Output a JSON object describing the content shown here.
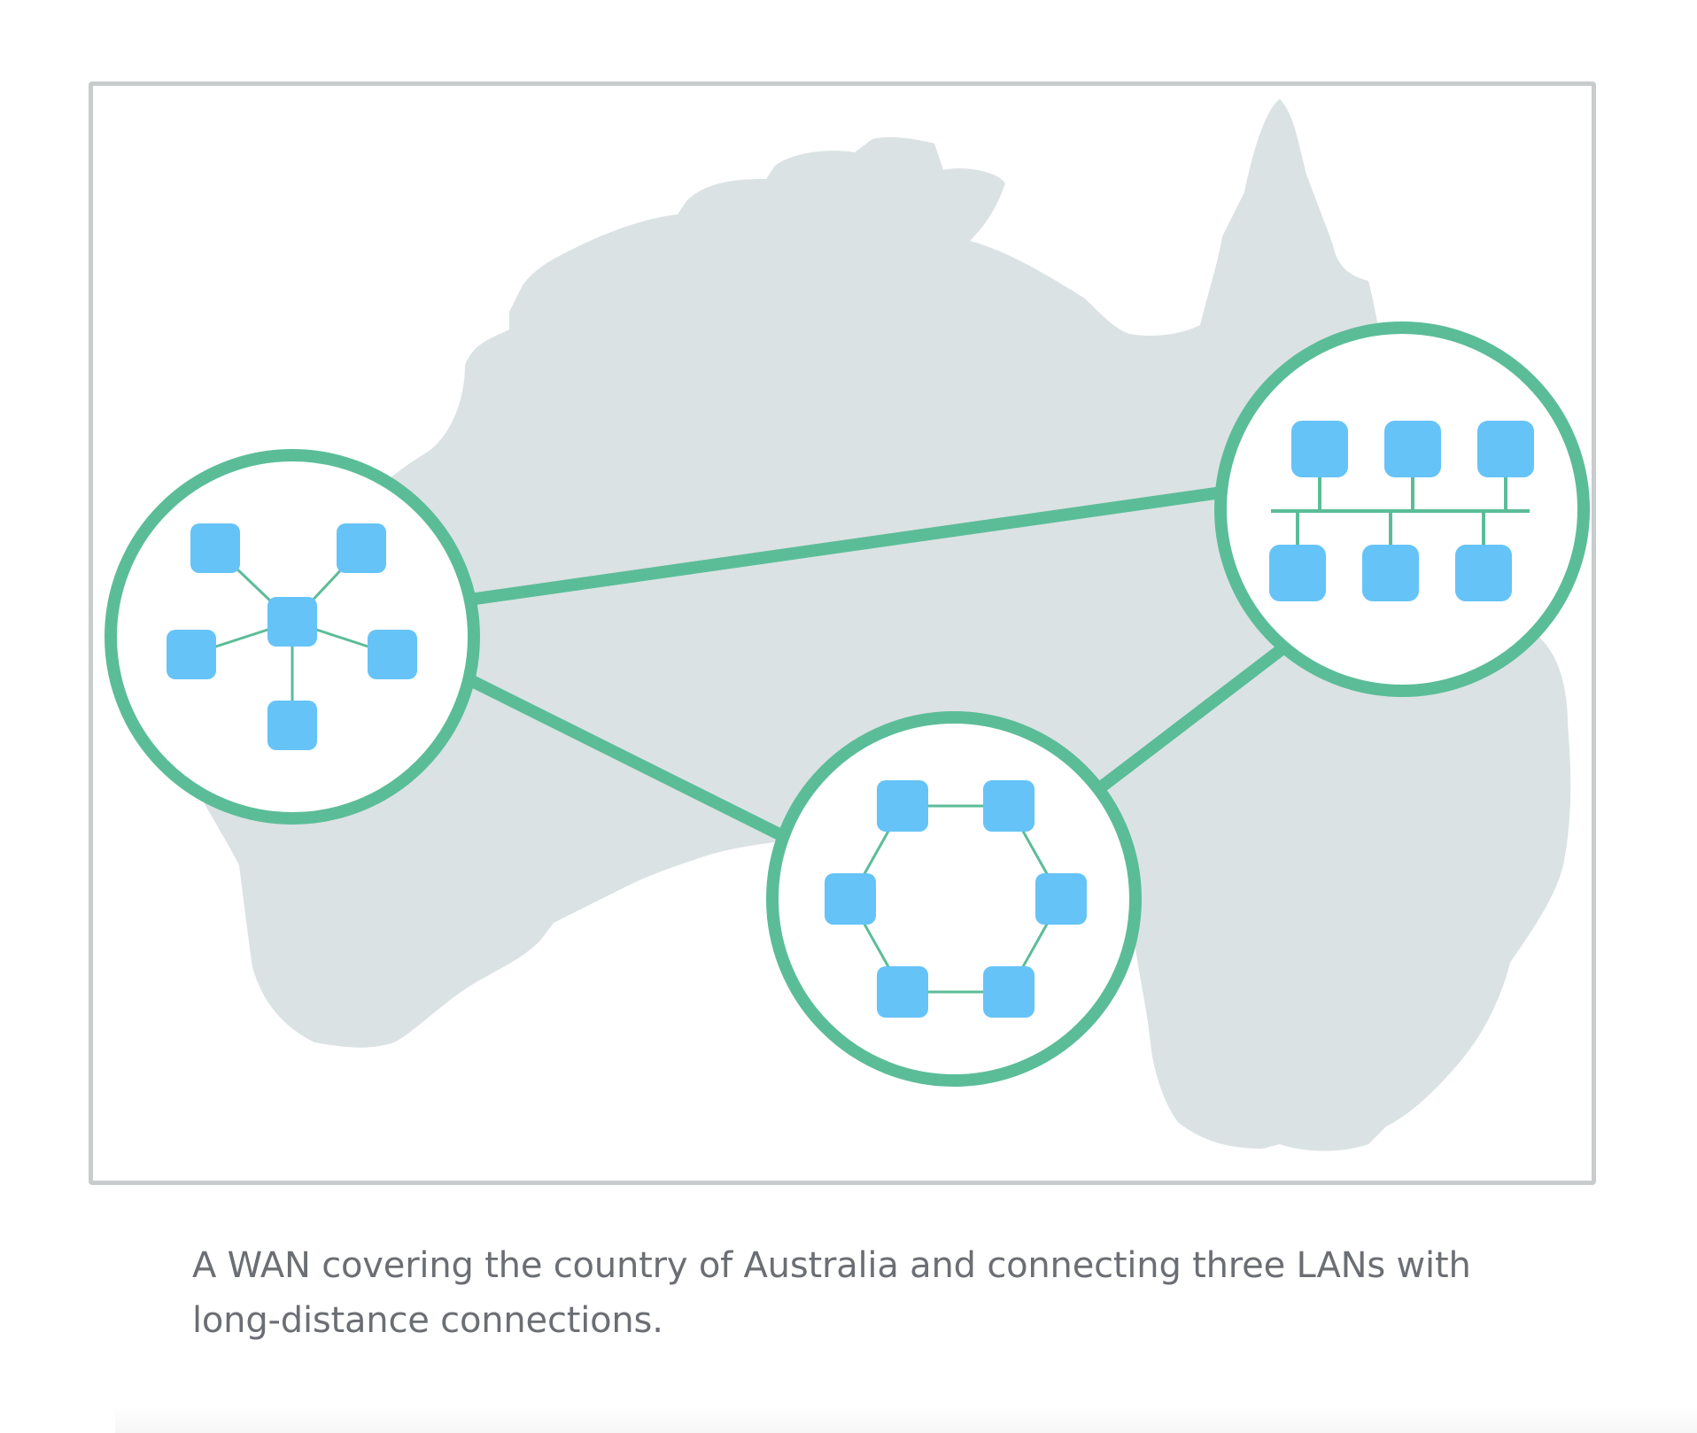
{
  "caption": "A WAN covering the country of Australia and connecting three LANs with long-distance connections.",
  "colors": {
    "land": "#dbe2e3",
    "link": "#5bbd98",
    "node": "#66c3f7",
    "frame": "#c9cccd",
    "caption": "#6b6e73"
  },
  "icons": {
    "map": "australia-map-silhouette",
    "node": "rounded-square-node"
  },
  "networks": [
    {
      "id": "lan-west",
      "topology": "star",
      "node_count": 6
    },
    {
      "id": "lan-south",
      "topology": "ring",
      "node_count": 6
    },
    {
      "id": "lan-east",
      "topology": "bus",
      "node_count": 6
    }
  ],
  "links": [
    {
      "from": "lan-west",
      "to": "lan-east"
    },
    {
      "from": "lan-west",
      "to": "lan-south"
    },
    {
      "from": "lan-south",
      "to": "lan-east"
    }
  ]
}
